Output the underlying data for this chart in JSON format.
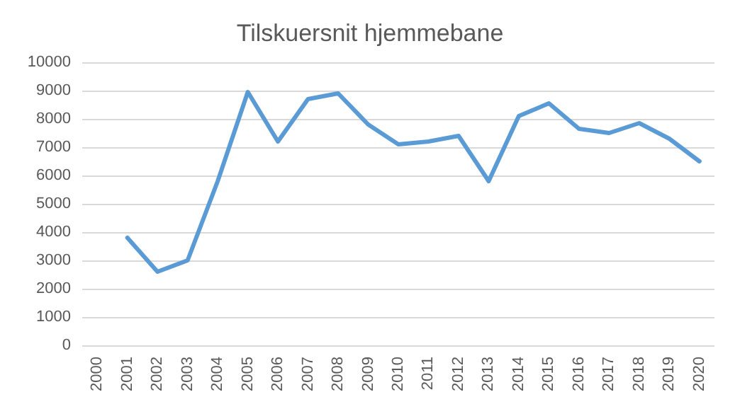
{
  "chart_data": {
    "type": "line",
    "title": "Tilskuersnit hjemmebane",
    "categories": [
      "2000",
      "2001",
      "2002",
      "2003",
      "2004",
      "2005",
      "2006",
      "2007",
      "2008",
      "2009",
      "2010",
      "2011",
      "2012",
      "2013",
      "2014",
      "2015",
      "2016",
      "2017",
      "2018",
      "2019",
      "2020"
    ],
    "series": [
      {
        "color": "#5b9bd5",
        "values": [
          null,
          3800,
          2600,
          3000,
          5800,
          8950,
          7200,
          8700,
          8900,
          7800,
          7100,
          7200,
          7400,
          5800,
          8100,
          8550,
          7650,
          7500,
          7850,
          7300,
          6500
        ]
      }
    ],
    "ylim": [
      0,
      10000
    ],
    "yticks": [
      0,
      1000,
      2000,
      3000,
      4000,
      5000,
      6000,
      7000,
      8000,
      9000,
      10000
    ],
    "grid": "y",
    "marker": "none",
    "line_style": "solid"
  }
}
